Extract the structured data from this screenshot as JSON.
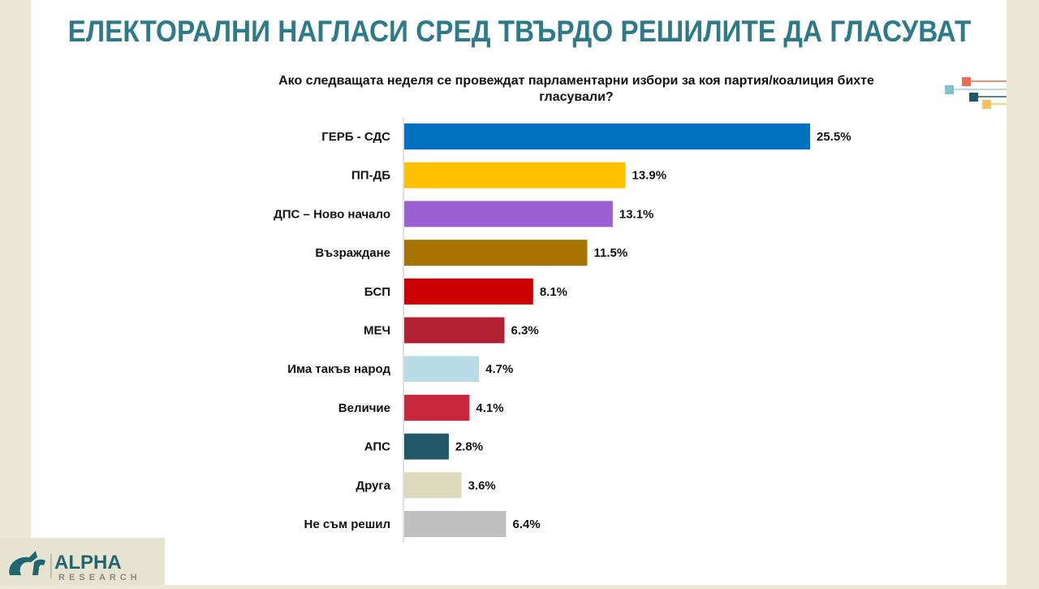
{
  "title": "ЕЛЕКТОРАЛНИ НАГЛАСИ СРЕД ТВЪРДО РЕШИЛИТЕ ДА ГЛАСУВАТ",
  "question": "Ако следващата неделя се провеждат парламентарни избори за коя партия/коалиция бихте гласували?",
  "logo": {
    "name": "ALPHA",
    "sub": "RESEARCH",
    "color": "#1f6670"
  },
  "chart_data": {
    "type": "bar",
    "orientation": "horizontal",
    "title": "Ако следващата неделя се провеждат парламентарни избори за коя партия/коалиция бихте гласували?",
    "categories": [
      "ГЕРБ - СДС",
      "ПП-ДБ",
      "ДПС – Ново начало",
      "Възраждане",
      "БСП",
      "МЕЧ",
      "Има такъв народ",
      "Величие",
      "АПС",
      "Друга",
      "Не съм решил"
    ],
    "values": [
      25.5,
      13.9,
      13.1,
      11.5,
      8.1,
      6.3,
      4.7,
      4.1,
      2.8,
      3.6,
      6.4
    ],
    "labels": [
      "25.5%",
      "13.9%",
      "13.1%",
      "11.5%",
      "8.1%",
      "6.3%",
      "4.7%",
      "4.1%",
      "2.8%",
      "3.6%",
      "6.4%"
    ],
    "colors": [
      "#0070c0",
      "#ffc000",
      "#9b5fd1",
      "#a67300",
      "#cc0000",
      "#b22234",
      "#b8dde6",
      "#c8283c",
      "#215968",
      "#ddd9bc",
      "#bfbfbf"
    ],
    "unit": "%",
    "grid": false
  }
}
